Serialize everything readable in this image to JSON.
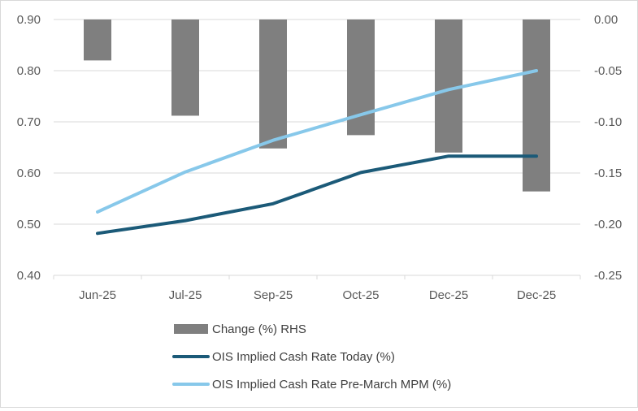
{
  "chart_data": {
    "type": "bar+line",
    "categories": [
      "Jun-25",
      "Jul-25",
      "Sep-25",
      "Oct-25",
      "Dec-25",
      "Dec-25"
    ],
    "y_left": {
      "min": 0.4,
      "max": 0.9,
      "step": 0.1,
      "ticks": [
        "0.40",
        "0.50",
        "0.60",
        "0.70",
        "0.80",
        "0.90"
      ]
    },
    "y_right": {
      "min": -0.25,
      "max": 0.0,
      "step": 0.05,
      "ticks": [
        "-0.25",
        "-0.20",
        "-0.15",
        "-0.10",
        "-0.05",
        "0.00"
      ]
    },
    "series": [
      {
        "name": "Change (%) RHS",
        "kind": "bar",
        "axis": "right",
        "color": "#7f7f7f",
        "values": [
          -0.04,
          -0.094,
          -0.126,
          -0.113,
          -0.13,
          -0.168
        ]
      },
      {
        "name": "OIS Implied Cash Rate Today (%)",
        "kind": "line",
        "axis": "left",
        "color": "#1b5a78",
        "values": [
          0.482,
          0.507,
          0.54,
          0.601,
          0.633,
          0.633
        ]
      },
      {
        "name": "OIS Implied Cash Rate Pre-March MPM (%)",
        "kind": "line",
        "axis": "left",
        "color": "#87c8ea",
        "values": [
          0.524,
          0.602,
          0.664,
          0.714,
          0.763,
          0.8
        ]
      }
    ],
    "grid": true,
    "legend_position": "bottom"
  }
}
